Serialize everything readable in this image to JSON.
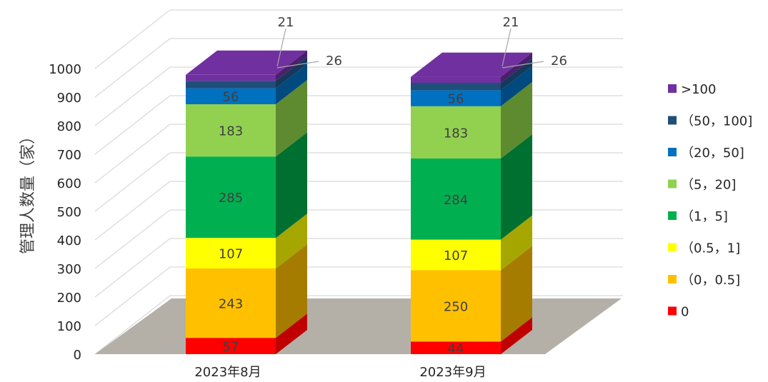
{
  "chart_data": {
    "type": "bar",
    "stacked": true,
    "three_d": true,
    "ylabel": "管理人数量（家）",
    "xlabel": "",
    "ylim": [
      0,
      1000
    ],
    "yticks": [
      "0",
      "100",
      "200",
      "300",
      "400",
      "500",
      "600",
      "700",
      "800",
      "900",
      "1000"
    ],
    "categories": [
      "2023年8月",
      "2023年9月"
    ],
    "legend_position": "right",
    "grid": true,
    "series": [
      {
        "name": "0",
        "values": [
          57,
          44
        ],
        "color": "#FF0000",
        "side": "#C00000"
      },
      {
        "name": "（0，0.5]",
        "values": [
          243,
          250
        ],
        "color": "#FFC000",
        "side": "#A67C00"
      },
      {
        "name": "（0.5，1]",
        "values": [
          107,
          107
        ],
        "color": "#FFFF00",
        "side": "#A6A600"
      },
      {
        "name": "（1，5]",
        "values": [
          285,
          284
        ],
        "color": "#00B050",
        "side": "#007030"
      },
      {
        "name": "（5，20]",
        "values": [
          183,
          183
        ],
        "color": "#92D050",
        "side": "#5E8A30"
      },
      {
        "name": "（20，50]",
        "values": [
          56,
          56
        ],
        "color": "#0070C0",
        "side": "#004A80"
      },
      {
        "name": "（50，100]",
        "values": [
          26,
          26
        ],
        "color": "#1F4E79",
        "side": "#16385A"
      },
      {
        "name": ">100",
        "values": [
          21,
          21
        ],
        "color": "#7030A0",
        "side": "#4A1F6B"
      }
    ]
  }
}
